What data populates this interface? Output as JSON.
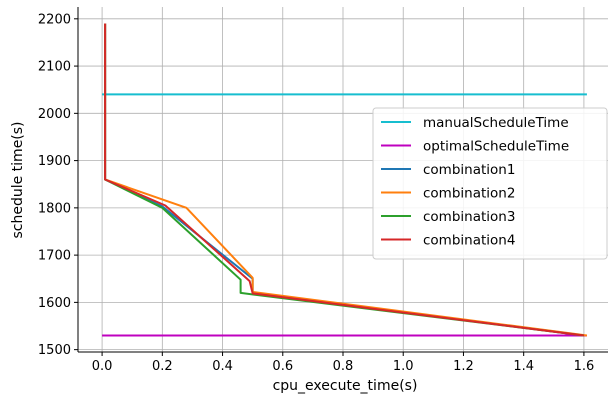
{
  "chart_data": {
    "type": "line",
    "title": "",
    "xlabel": "cpu_execute_time(s)",
    "ylabel": "schedule time(s)",
    "xlim": [
      -0.08,
      1.68
    ],
    "ylim": [
      1495,
      2225
    ],
    "xticks": [
      0.0,
      0.2,
      0.4,
      0.6,
      0.8,
      1.0,
      1.2,
      1.4,
      1.6
    ],
    "xtick_labels": [
      "0.0",
      "0.2",
      "0.4",
      "0.6",
      "0.8",
      "1.0",
      "1.2",
      "1.4",
      "1.6"
    ],
    "yticks": [
      1500,
      1600,
      1700,
      1800,
      1900,
      2000,
      2100,
      2200
    ],
    "ytick_labels": [
      "1500",
      "1600",
      "1700",
      "1800",
      "1900",
      "2000",
      "2100",
      "2200"
    ],
    "grid": true,
    "legend_position": "center-right",
    "series": [
      {
        "name": "manualScheduleTime",
        "color": "#17becf",
        "x": [
          0.0,
          1.61
        ],
        "y": [
          2040,
          2040
        ]
      },
      {
        "name": "optimalScheduleTime",
        "color": "#bf00bf",
        "x": [
          0.0,
          1.61
        ],
        "y": [
          1530,
          1530
        ]
      },
      {
        "name": "combination1",
        "color": "#1f77b4",
        "x": [
          0.01,
          0.01,
          0.2,
          0.5,
          0.5,
          1.6
        ],
        "y": [
          2190,
          1860,
          1803,
          1650,
          1620,
          1530
        ]
      },
      {
        "name": "combination2",
        "color": "#ff7f0e",
        "x": [
          0.01,
          0.01,
          0.28,
          0.5,
          0.5,
          1.61
        ],
        "y": [
          2190,
          1860,
          1800,
          1652,
          1622,
          1530
        ]
      },
      {
        "name": "combination3",
        "color": "#2ca02c",
        "x": [
          0.01,
          0.01,
          0.2,
          0.46,
          0.46,
          1.6
        ],
        "y": [
          2190,
          1860,
          1800,
          1648,
          1620,
          1530
        ]
      },
      {
        "name": "combination4",
        "color": "#d62728",
        "x": [
          0.01,
          0.01,
          0.21,
          0.49,
          0.5,
          1.6
        ],
        "y": [
          2190,
          1860,
          1805,
          1645,
          1619,
          1530
        ]
      }
    ]
  }
}
